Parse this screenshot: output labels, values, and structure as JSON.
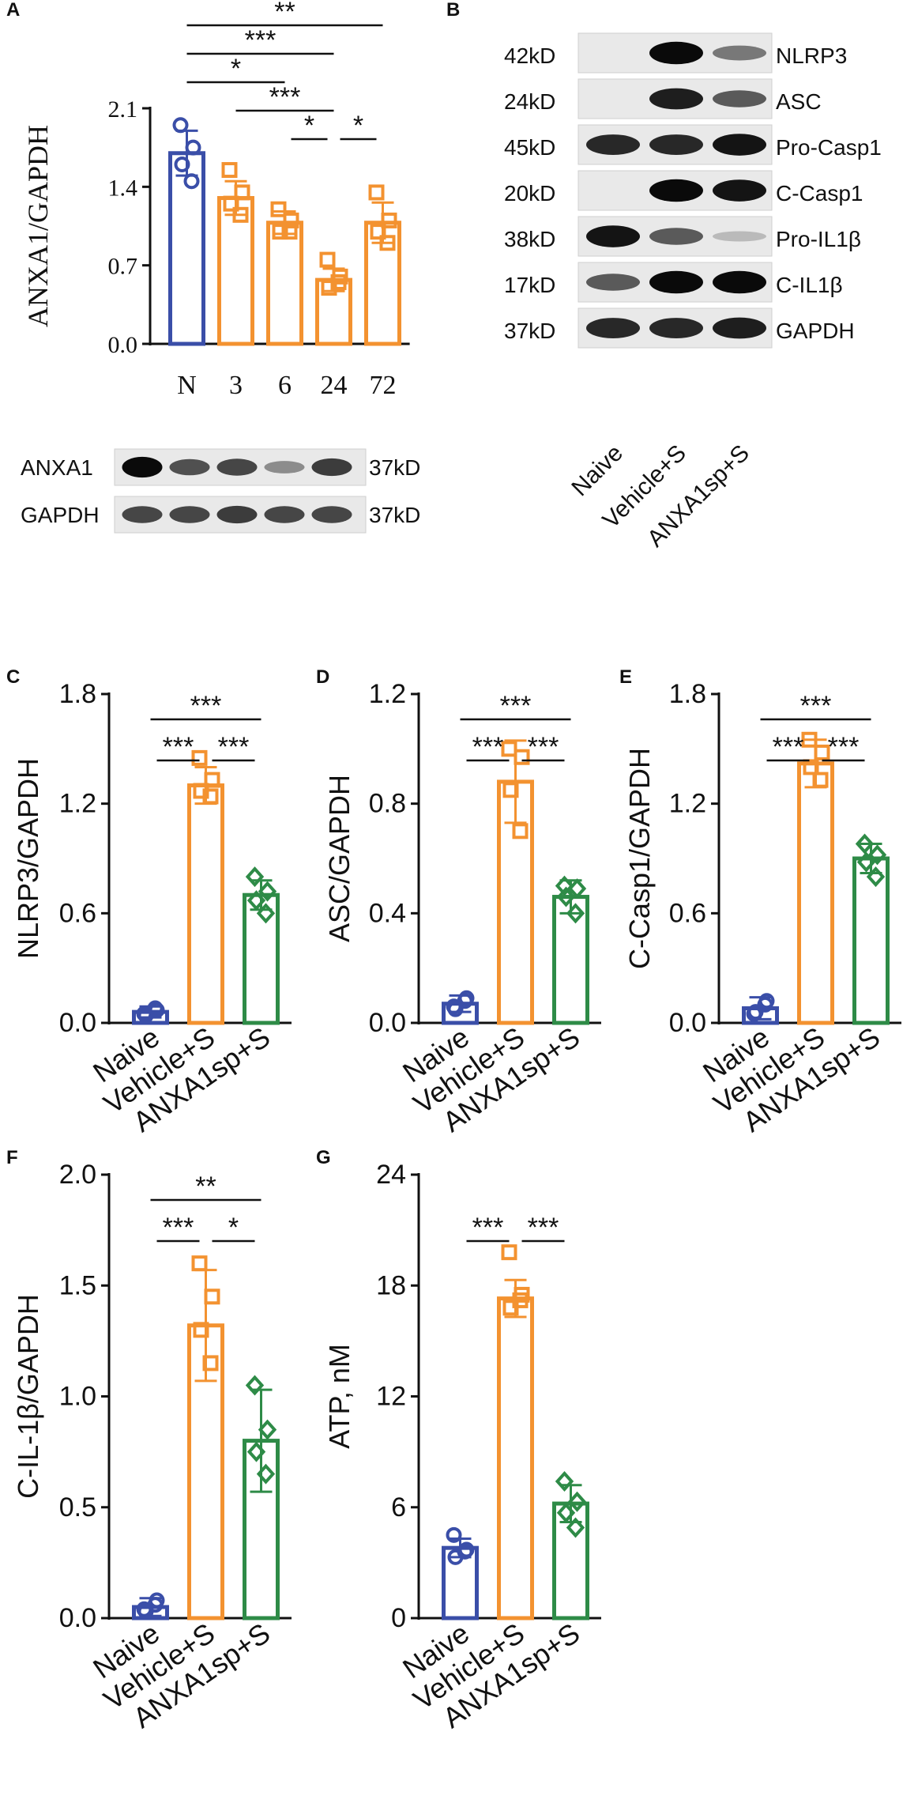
{
  "colors": {
    "naive": "#3a4ea8",
    "vehicle": "#f39230",
    "treat": "#2e8b47",
    "axis": "#111111"
  },
  "panels": {
    "A": "A",
    "B": "B",
    "C": "C",
    "D": "D",
    "E": "E",
    "F": "F",
    "G": "G"
  },
  "blotA": {
    "rows": [
      {
        "name": "ANXA1",
        "kd": "37kD",
        "intensities": [
          1.0,
          0.65,
          0.7,
          0.35,
          0.75
        ]
      },
      {
        "name": "GAPDH",
        "kd": "37kD",
        "intensities": [
          0.7,
          0.7,
          0.75,
          0.7,
          0.7
        ]
      }
    ]
  },
  "blotB": {
    "rows": [
      {
        "kd": "42kD",
        "name": "NLRP3",
        "intensities": [
          0,
          1.0,
          0.45
        ]
      },
      {
        "kd": "24kD",
        "name": "ASC",
        "intensities": [
          0,
          0.9,
          0.6
        ]
      },
      {
        "kd": "45kD",
        "name": "Pro-Casp1",
        "intensities": [
          0.85,
          0.85,
          0.95
        ]
      },
      {
        "kd": "20kD",
        "name": "C-Casp1",
        "intensities": [
          0,
          1.0,
          0.95
        ]
      },
      {
        "kd": "38kD",
        "name": "Pro-IL1β",
        "intensities": [
          0.95,
          0.6,
          0.12
        ]
      },
      {
        "kd": "17kD",
        "name": "C-IL1β",
        "intensities": [
          0.6,
          1.0,
          1.0
        ]
      },
      {
        "kd": "37kD",
        "name": "GAPDH",
        "intensities": [
          0.85,
          0.85,
          0.9
        ]
      }
    ],
    "lanes": [
      "Naive",
      "Vehicle+S",
      "ANXA1sp+S"
    ]
  },
  "chart_data": [
    {
      "panel": "A",
      "type": "bar",
      "categories": [
        "N",
        "3",
        "6",
        "24",
        "72"
      ],
      "values": [
        1.7,
        1.3,
        1.08,
        0.57,
        1.08
      ],
      "points": [
        [
          1.95,
          1.75,
          1.6,
          1.45
        ],
        [
          1.55,
          1.35,
          1.25,
          1.15
        ],
        [
          1.2,
          1.1,
          1.0,
          1.0
        ],
        [
          0.75,
          0.6,
          0.5,
          0.55
        ],
        [
          1.35,
          1.1,
          1.0,
          0.9
        ]
      ],
      "errors": [
        0.2,
        0.15,
        0.1,
        0.1,
        0.18
      ],
      "ylabel": "ANXA1/GAPDH",
      "ylim": [
        0,
        2.1
      ],
      "yticks": [
        "0.0",
        "0.7",
        "1.4",
        "2.1"
      ],
      "colors": [
        "#3a4ea8",
        "#f39230",
        "#f39230",
        "#f39230",
        "#f39230"
      ],
      "markers": [
        "circle",
        "square",
        "square",
        "square",
        "square"
      ],
      "sig": [
        {
          "a": 0,
          "b": 4,
          "label": "**"
        },
        {
          "a": 0,
          "b": 3,
          "label": "***"
        },
        {
          "a": 0,
          "b": 2,
          "label": "*"
        },
        {
          "a": 1,
          "b": 3,
          "label": "***"
        },
        {
          "a": 2,
          "b": 3,
          "label": "*"
        },
        {
          "a": 3,
          "b": 4,
          "label": "*"
        }
      ]
    },
    {
      "panel": "C",
      "type": "bar",
      "categories": [
        "Naive",
        "Vehicle+S",
        "ANXA1sp+S"
      ],
      "values": [
        0.06,
        1.3,
        0.7
      ],
      "points": [
        [
          0.05,
          0.07,
          0.04,
          0.08
        ],
        [
          1.45,
          1.33,
          1.27,
          1.24
        ],
        [
          0.8,
          0.72,
          0.67,
          0.6
        ]
      ],
      "errors": [
        0.03,
        0.1,
        0.08
      ],
      "ylabel": "NLRP3/GAPDH",
      "ylim": [
        0,
        1.8
      ],
      "yticks": [
        "0.0",
        "0.6",
        "1.2",
        "1.8"
      ],
      "colors": [
        "#3a4ea8",
        "#f39230",
        "#2e8b47"
      ],
      "markers": [
        "circle",
        "square",
        "diamond"
      ],
      "sig": [
        {
          "a": 0,
          "b": 2,
          "label": "***"
        },
        {
          "a": 0,
          "b": 1,
          "label": "***"
        },
        {
          "a": 1,
          "b": 2,
          "label": "***"
        }
      ]
    },
    {
      "panel": "D",
      "type": "bar",
      "categories": [
        "Naive",
        "Vehicle+S",
        "ANXA1sp+S"
      ],
      "values": [
        0.07,
        0.88,
        0.46
      ],
      "points": [
        [
          0.06,
          0.09,
          0.05,
          0.08
        ],
        [
          1.0,
          0.97,
          0.85,
          0.7
        ],
        [
          0.5,
          0.49,
          0.46,
          0.4
        ]
      ],
      "errors": [
        0.03,
        0.15,
        0.06
      ],
      "ylabel": "ASC/GAPDH",
      "ylim": [
        0,
        1.2
      ],
      "yticks": [
        "0.0",
        "0.4",
        "0.8",
        "1.2"
      ],
      "colors": [
        "#3a4ea8",
        "#f39230",
        "#2e8b47"
      ],
      "markers": [
        "circle",
        "square",
        "diamond"
      ],
      "sig": [
        {
          "a": 0,
          "b": 2,
          "label": "***"
        },
        {
          "a": 0,
          "b": 1,
          "label": "***"
        },
        {
          "a": 1,
          "b": 2,
          "label": "***"
        }
      ]
    },
    {
      "panel": "E",
      "type": "bar",
      "categories": [
        "Naive",
        "Vehicle+S",
        "ANXA1sp+S"
      ],
      "values": [
        0.08,
        1.42,
        0.9
      ],
      "points": [
        [
          0.05,
          0.12,
          0.06,
          0.1
        ],
        [
          1.55,
          1.48,
          1.4,
          1.33
        ],
        [
          0.98,
          0.92,
          0.88,
          0.8
        ]
      ],
      "errors": [
        0.06,
        0.13,
        0.08
      ],
      "ylabel": "C-Casp1/GAPDH",
      "ylim": [
        0,
        1.8
      ],
      "yticks": [
        "0.0",
        "0.6",
        "1.2",
        "1.8"
      ],
      "colors": [
        "#3a4ea8",
        "#f39230",
        "#2e8b47"
      ],
      "markers": [
        "circle",
        "square",
        "diamond"
      ],
      "sig": [
        {
          "a": 0,
          "b": 2,
          "label": "***"
        },
        {
          "a": 0,
          "b": 1,
          "label": "***"
        },
        {
          "a": 1,
          "b": 2,
          "label": "***"
        }
      ]
    },
    {
      "panel": "F",
      "type": "bar",
      "categories": [
        "Naive",
        "Vehicle+S",
        "ANXA1sp+S"
      ],
      "values": [
        0.05,
        1.32,
        0.8
      ],
      "points": [
        [
          0.04,
          0.08,
          0.03,
          0.06
        ],
        [
          1.6,
          1.45,
          1.3,
          1.15
        ],
        [
          1.05,
          0.85,
          0.75,
          0.65
        ]
      ],
      "errors": [
        0.04,
        0.25,
        0.23
      ],
      "ylabel": "C-IL-1β/GAPDH",
      "ylim": [
        0,
        2.0
      ],
      "yticks": [
        "0.0",
        "0.5",
        "1.0",
        "1.5",
        "2.0"
      ],
      "colors": [
        "#3a4ea8",
        "#f39230",
        "#2e8b47"
      ],
      "markers": [
        "circle",
        "square",
        "diamond"
      ],
      "sig": [
        {
          "a": 0,
          "b": 2,
          "label": "**"
        },
        {
          "a": 0,
          "b": 1,
          "label": "***"
        },
        {
          "a": 1,
          "b": 2,
          "label": "*"
        }
      ]
    },
    {
      "panel": "G",
      "type": "bar",
      "categories": [
        "Naive",
        "Vehicle+S",
        "ANXA1sp+S"
      ],
      "values": [
        3.8,
        17.3,
        6.2
      ],
      "points": [
        [
          4.5,
          3.7,
          3.3,
          3.6
        ],
        [
          19.8,
          17.5,
          16.8,
          17.2
        ],
        [
          7.4,
          6.3,
          5.7,
          4.9
        ]
      ],
      "errors": [
        0.5,
        1.0,
        1.0
      ],
      "ylabel": "ATP, nM",
      "ylim": [
        0,
        24
      ],
      "yticks": [
        "0",
        "6",
        "12",
        "18",
        "24"
      ],
      "colors": [
        "#3a4ea8",
        "#f39230",
        "#2e8b47"
      ],
      "markers": [
        "circle",
        "square",
        "diamond"
      ],
      "sig": [
        {
          "a": 0,
          "b": 1,
          "label": "***"
        },
        {
          "a": 1,
          "b": 2,
          "label": "***"
        }
      ]
    }
  ]
}
